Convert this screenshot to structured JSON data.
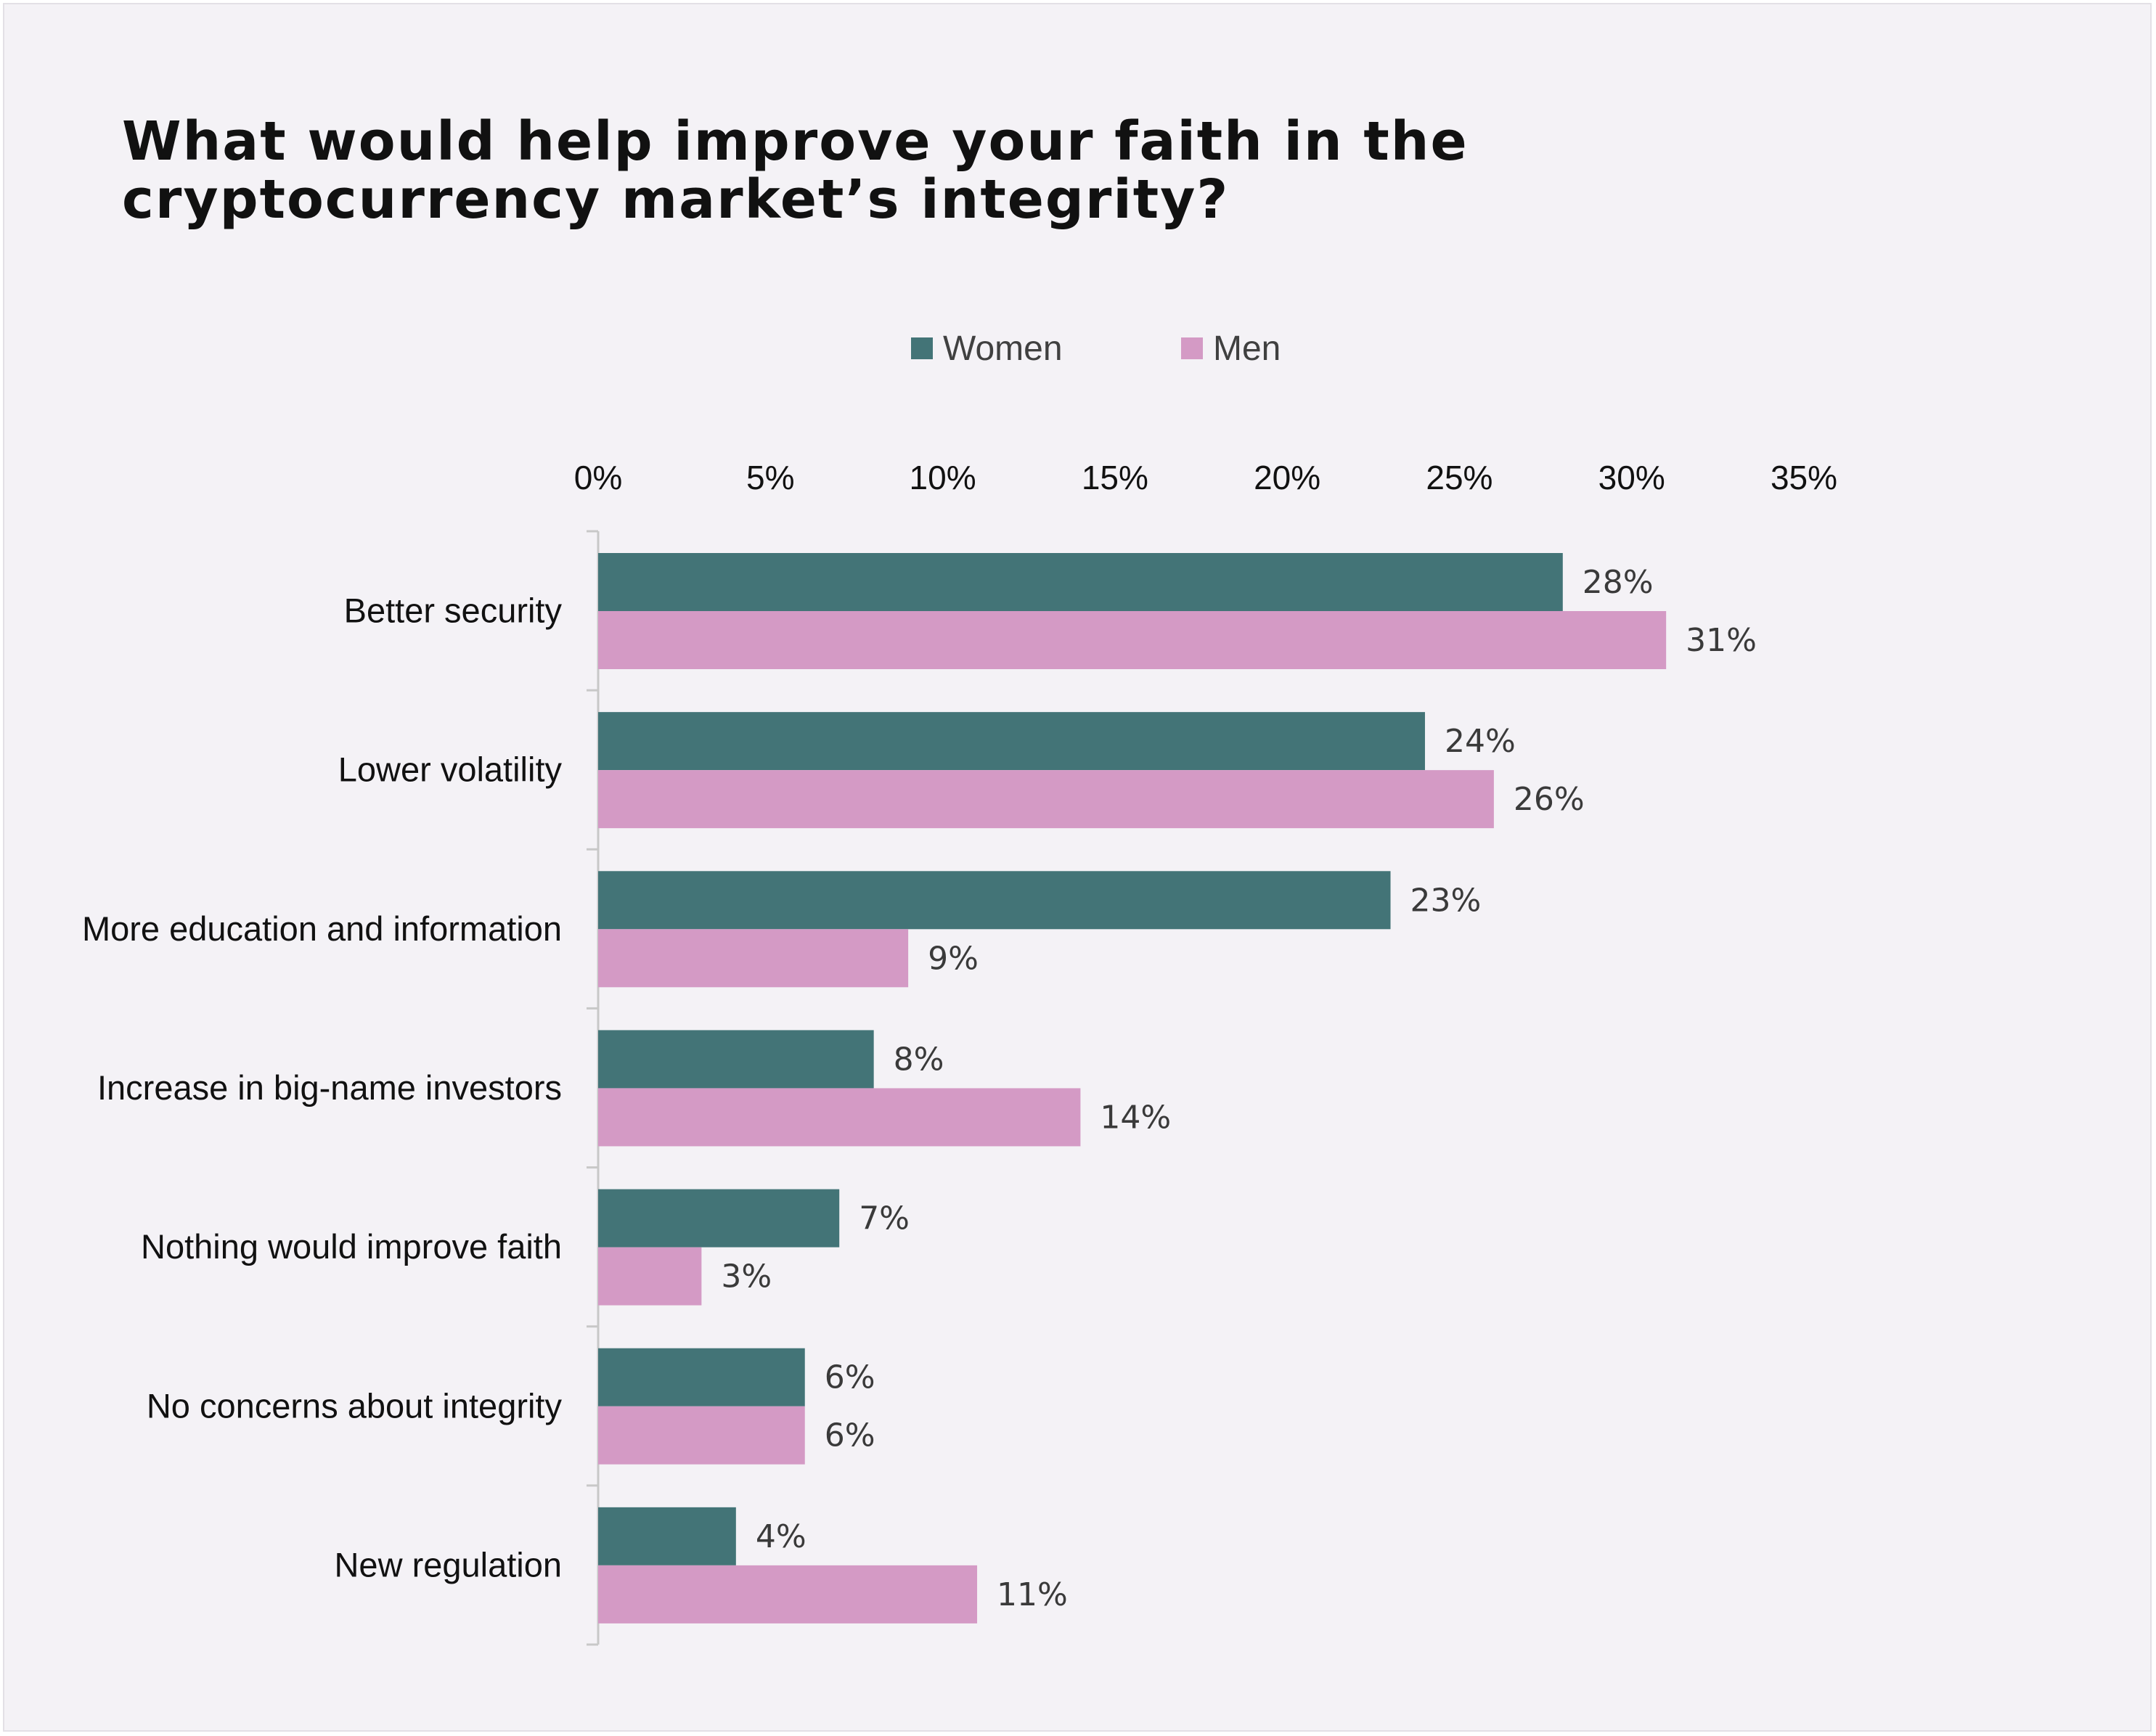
{
  "chart_data": {
    "type": "bar",
    "orientation": "horizontal",
    "title": [
      "What would help improve your faith in the",
      "cryptocurrency market’s integrity?"
    ],
    "categories": [
      "Better security",
      "Lower volatility",
      "More education and information",
      "Increase in big-name investors",
      "Nothing would improve faith",
      "No concerns about integrity",
      "New regulation"
    ],
    "series": [
      {
        "name": "Women",
        "color": "#437477",
        "values": [
          28,
          24,
          23,
          8,
          7,
          6,
          4
        ],
        "labels": [
          "28%",
          "24%",
          "23%",
          "8%",
          "7%",
          "6%",
          "4%"
        ]
      },
      {
        "name": "Men",
        "color": "#d49ac5",
        "values": [
          31,
          26,
          9,
          14,
          3,
          6,
          11
        ],
        "labels": [
          "31%",
          "26%",
          "9%",
          "14%",
          "3%",
          "6%",
          "11%"
        ]
      }
    ],
    "xlim": [
      0,
      35
    ],
    "xticks": [
      0,
      5,
      10,
      15,
      20,
      25,
      30,
      35
    ],
    "xtick_labels": [
      "0%",
      "5%",
      "10%",
      "15%",
      "20%",
      "25%",
      "30%",
      "35%"
    ],
    "xaxis_position": "top",
    "legend_position": "top-center",
    "grid": false
  }
}
